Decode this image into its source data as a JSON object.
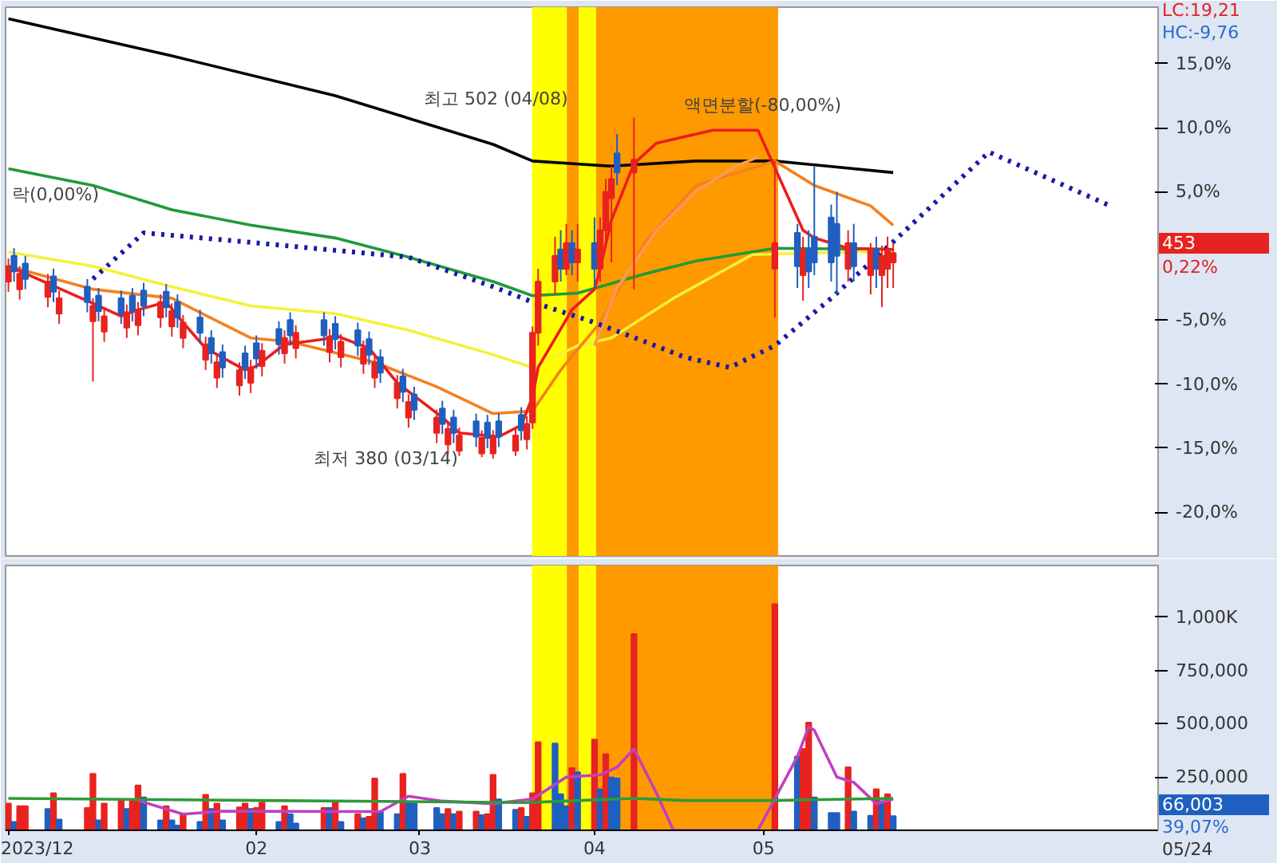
{
  "chart_data": [
    {
      "type": "candlestick",
      "x": [
        "2023-12-19",
        "2023-12-20",
        "2023-12-21",
        "2023-12-22",
        "2023-12-26",
        "2023-12-27",
        "2023-12-28",
        "2024-01-02",
        "2024-01-03",
        "2024-01-04",
        "2024-01-05",
        "2024-01-08",
        "2024-01-09",
        "2024-01-10",
        "2024-01-11",
        "2024-01-12",
        "2024-01-15",
        "2024-01-16",
        "2024-01-17",
        "2024-01-18",
        "2024-01-19",
        "2024-01-22",
        "2024-01-23",
        "2024-01-24",
        "2024-01-25",
        "2024-01-26",
        "2024-01-29",
        "2024-01-30",
        "2024-01-31",
        "2024-02-01",
        "2024-02-02",
        "2024-02-05",
        "2024-02-06",
        "2024-02-07",
        "2024-02-08",
        "2024-02-13",
        "2024-02-14",
        "2024-02-15",
        "2024-02-16",
        "2024-02-19",
        "2024-02-20",
        "2024-02-21",
        "2024-02-22",
        "2024-02-23",
        "2024-02-26",
        "2024-02-27",
        "2024-02-28",
        "2024-02-29",
        "2024-03-04",
        "2024-03-05",
        "2024-03-06",
        "2024-03-07",
        "2024-03-08",
        "2024-03-11",
        "2024-03-12",
        "2024-03-13",
        "2024-03-14",
        "2024-03-15",
        "2024-03-18",
        "2024-03-19",
        "2024-03-20",
        "2024-03-21",
        "2024-03-22",
        "2024-03-25",
        "2024-03-26",
        "2024-03-27",
        "2024-03-28",
        "2024-03-29",
        "2024-04-01",
        "2024-04-02",
        "2024-04-03",
        "2024-04-04",
        "2024-04-05",
        "2024-04-08",
        "2024-05-03",
        "2024-05-07",
        "2024-05-08",
        "2024-05-09",
        "2024-05-10",
        "2024-05-13",
        "2024-05-14",
        "2024-05-16",
        "2024-05-17",
        "2024-05-20",
        "2024-05-21",
        "2024-05-22",
        "2024-05-23",
        "2024-05-24"
      ],
      "ohlc": [
        [
          -2.0,
          -0.2,
          -2.8,
          -0.8
        ],
        [
          0.0,
          0.6,
          -2.0,
          -1.2
        ],
        [
          -2.6,
          -0.8,
          -3.4,
          -1.4
        ],
        [
          -0.6,
          0.0,
          -2.6,
          -1.8
        ],
        [
          -3.2,
          -1.4,
          -4.0,
          -2.0
        ],
        [
          -1.6,
          -1.0,
          -3.6,
          -2.8
        ],
        [
          -4.5,
          -2.7,
          -5.3,
          -3.3
        ],
        [
          -2.4,
          -1.8,
          -4.4,
          -3.6
        ],
        [
          -5.1,
          -3.3,
          -9.8,
          -3.9
        ],
        [
          -3.1,
          -2.5,
          -5.1,
          -4.3
        ],
        [
          -5.9,
          -4.1,
          -6.7,
          -4.7
        ],
        [
          -3.3,
          -2.7,
          -5.3,
          -4.5
        ],
        [
          -5.6,
          -3.8,
          -6.4,
          -4.4
        ],
        [
          -3.1,
          -2.5,
          -5.1,
          -4.3
        ],
        [
          -5.4,
          -3.6,
          -6.2,
          -4.2
        ],
        [
          -2.7,
          -2.1,
          -4.7,
          -3.9
        ],
        [
          -4.8,
          -3.0,
          -5.6,
          -3.6
        ],
        [
          -2.8,
          -2.2,
          -4.8,
          -4.0
        ],
        [
          -5.5,
          -3.7,
          -6.3,
          -4.3
        ],
        [
          -3.6,
          -3.0,
          -5.6,
          -4.8
        ],
        [
          -6.4,
          -4.6,
          -7.2,
          -5.2
        ],
        [
          -4.8,
          -4.2,
          -6.8,
          -6.0
        ],
        [
          -8.1,
          -6.3,
          -8.9,
          -6.9
        ],
        [
          -6.4,
          -5.8,
          -8.4,
          -7.6
        ],
        [
          -9.5,
          -7.7,
          -10.3,
          -8.3
        ],
        [
          -7.5,
          -6.9,
          -9.5,
          -8.7
        ],
        [
          -10.1,
          -8.3,
          -10.9,
          -8.9
        ],
        [
          -7.6,
          -7.0,
          -9.6,
          -8.8
        ],
        [
          -9.9,
          -8.1,
          -10.7,
          -8.7
        ],
        [
          -6.8,
          -6.2,
          -8.8,
          -8.0
        ],
        [
          -8.6,
          -6.8,
          -9.4,
          -7.4
        ],
        [
          -5.7,
          -5.1,
          -7.7,
          -6.9
        ],
        [
          -7.6,
          -5.8,
          -8.4,
          -6.4
        ],
        [
          -5.0,
          -4.4,
          -7.0,
          -6.2
        ],
        [
          -7.2,
          -5.4,
          -8.0,
          -6.0
        ],
        [
          -5.0,
          -4.4,
          -7.0,
          -6.2
        ],
        [
          -7.5,
          -5.7,
          -8.3,
          -6.3
        ],
        [
          -5.3,
          -4.7,
          -7.3,
          -6.5
        ],
        [
          -7.9,
          -6.1,
          -8.7,
          -6.7
        ],
        [
          -5.8,
          -5.2,
          -7.8,
          -7.0
        ],
        [
          -8.4,
          -6.6,
          -9.2,
          -7.2
        ],
        [
          -6.5,
          -5.9,
          -8.5,
          -7.7
        ],
        [
          -9.5,
          -7.7,
          -10.3,
          -8.3
        ],
        [
          -7.9,
          -7.3,
          -9.9,
          -9.1
        ],
        [
          -11.1,
          -9.3,
          -11.9,
          -9.9
        ],
        [
          -9.4,
          -8.8,
          -11.4,
          -10.6
        ],
        [
          -12.6,
          -10.8,
          -13.4,
          -11.4
        ],
        [
          -10.8,
          -10.2,
          -12.8,
          -12.0
        ],
        [
          -13.8,
          -12.0,
          -14.6,
          -12.6
        ],
        [
          -11.9,
          -11.3,
          -13.9,
          -13.1
        ],
        [
          -14.7,
          -12.9,
          -15.5,
          -13.5
        ],
        [
          -12.6,
          -12.0,
          -14.6,
          -13.8
        ],
        [
          -15.2,
          -13.4,
          -15.6,
          -14.0
        ],
        [
          -12.9,
          -12.3,
          -14.9,
          -14.1
        ],
        [
          -15.4,
          -13.6,
          -15.7,
          -14.2
        ],
        [
          -13.0,
          -12.4,
          -15.0,
          -14.2
        ],
        [
          -15.4,
          -13.6,
          -15.8,
          -14.2
        ],
        [
          -12.9,
          -12.3,
          -14.9,
          -14.1
        ],
        [
          -15.2,
          -13.4,
          -15.6,
          -14.0
        ],
        [
          -12.4,
          -11.8,
          -14.4,
          -13.6
        ],
        [
          -14.3,
          -12.5,
          -15.1,
          -13.1
        ],
        [
          -13.0,
          -5.5,
          -13.5,
          -6.0
        ],
        [
          -6.0,
          -1.0,
          -7.0,
          -2.0
        ],
        [
          -2.0,
          1.5,
          -3.0,
          0.0
        ],
        [
          0.5,
          2.0,
          -2.0,
          -1.0
        ],
        [
          -1.0,
          2.5,
          -1.5,
          1.0
        ],
        [
          1.0,
          2.0,
          -1.5,
          -0.5
        ],
        [
          -0.5,
          2.5,
          -2.0,
          0.5
        ],
        [
          1.0,
          3.0,
          -2.5,
          -1.0
        ],
        [
          -1.0,
          3.0,
          -2.0,
          2.0
        ],
        [
          2.0,
          6.0,
          1.0,
          5.0
        ],
        [
          4.5,
          7.0,
          -0.5,
          6.0
        ],
        [
          8.0,
          9.5,
          5.5,
          6.5
        ],
        [
          6.5,
          10.8,
          -2.6,
          7.5
        ],
        [
          -1.0,
          7.4,
          -4.8,
          1.0
        ],
        [
          1.8,
          2.5,
          -2.5,
          -0.8
        ],
        [
          -1.5,
          1.5,
          -3.5,
          0.5
        ],
        [
          0.5,
          2.0,
          -2.5,
          -1.2
        ],
        [
          1.5,
          7.0,
          -1.5,
          -0.5
        ],
        [
          3.0,
          4.0,
          -2.0,
          -0.5
        ],
        [
          2.5,
          5.0,
          -3.0,
          0.0
        ],
        [
          -1.0,
          2.0,
          -2.0,
          1.0
        ],
        [
          1.0,
          2.5,
          -2.0,
          -0.8
        ],
        [
          -1.5,
          1.0,
          -3.0,
          0.5
        ],
        [
          0.5,
          1.5,
          -2.5,
          -1.0
        ],
        [
          -1.5,
          0.8,
          -4.0,
          0.0
        ],
        [
          -1.0,
          1.5,
          -2.5,
          0.5
        ],
        [
          -0.5,
          1.0,
          -2.5,
          0.22
        ]
      ],
      "colors": [
        "#e8231f",
        "#1f5fbf",
        "#e8231f",
        "#1f5fbf",
        "#e8231f",
        "#1f5fbf",
        "#e8231f",
        "#1f5fbf",
        "#e8231f",
        "#1f5fbf",
        "#e8231f",
        "#1f5fbf",
        "#e8231f",
        "#1f5fbf",
        "#e8231f",
        "#1f5fbf",
        "#e8231f",
        "#1f5fbf",
        "#e8231f",
        "#1f5fbf",
        "#e8231f",
        "#1f5fbf",
        "#e8231f",
        "#1f5fbf",
        "#e8231f",
        "#1f5fbf",
        "#e8231f",
        "#1f5fbf",
        "#e8231f",
        "#1f5fbf",
        "#e8231f",
        "#1f5fbf",
        "#e8231f",
        "#1f5fbf",
        "#e8231f",
        "#1f5fbf",
        "#e8231f",
        "#1f5fbf",
        "#e8231f",
        "#1f5fbf",
        "#e8231f",
        "#1f5fbf",
        "#e8231f",
        "#1f5fbf",
        "#e8231f",
        "#1f5fbf",
        "#e8231f",
        "#1f5fbf",
        "#e8231f",
        "#1f5fbf",
        "#e8231f",
        "#1f5fbf",
        "#e8231f",
        "#1f5fbf",
        "#e8231f",
        "#1f5fbf",
        "#e8231f",
        "#1f5fbf",
        "#e8231f",
        "#1f5fbf",
        "#e8231f",
        "#e8231f",
        "#e8231f",
        "#e8231f",
        "#1f5fbf",
        "#e8231f",
        "#1f5fbf",
        "#e8231f",
        "#1f5fbf",
        "#e8231f",
        "#e8231f",
        "#e8231f",
        "#1f5fbf",
        "#e8231f",
        "#e8231f",
        "#1f5fbf",
        "#e8231f",
        "#1f5fbf",
        "#1f5fbf",
        "#1f5fbf",
        "#1f5fbf",
        "#e8231f",
        "#1f5fbf",
        "#e8231f",
        "#1f5fbf",
        "#e8231f",
        "#e8231f",
        "#e8231f"
      ],
      "series": [
        {
          "type": "line",
          "color": "#000000",
          "x": [
            "2023-12-19",
            "2024-01-17",
            "2024-02-15",
            "2024-03-14",
            "2024-03-21",
            "2024-04-04",
            "2024-04-19",
            "2024-05-03",
            "2024-05-24"
          ],
          "values": [
            18.5,
            15.6,
            12.5,
            8.7,
            7.4,
            7.0,
            7.4,
            7.4,
            6.5
          ]
        },
        {
          "type": "line",
          "color": "#1f9a3a",
          "x": [
            "2023-12-19",
            "2024-01-03",
            "2024-01-17",
            "2024-01-31",
            "2024-02-15",
            "2024-02-28",
            "2024-03-14",
            "2024-03-21",
            "2024-03-29",
            "2024-04-10",
            "2024-04-19",
            "2024-05-03",
            "2024-05-24"
          ],
          "values": [
            6.8,
            5.5,
            3.6,
            2.4,
            1.4,
            -0.1,
            -2.0,
            -3.1,
            -2.9,
            -1.4,
            -0.4,
            0.6,
            0.5
          ]
        },
        {
          "type": "line",
          "color": "#f7f03a",
          "x": [
            "2023-12-19",
            "2024-01-03",
            "2024-01-17",
            "2024-01-31",
            "2024-02-15",
            "2024-02-28",
            "2024-03-14",
            "2024-03-21",
            "2024-03-29",
            "2024-04-04",
            "2024-04-15",
            "2024-04-29",
            "2024-05-24"
          ],
          "values": [
            0.3,
            -0.8,
            -2.4,
            -3.9,
            -4.5,
            -5.8,
            -7.7,
            -8.7,
            -7.0,
            -6.4,
            -3.3,
            0.1,
            0.4
          ]
        },
        {
          "type": "line",
          "color": "#f5801e",
          "x": [
            "2023-12-19",
            "2024-01-03",
            "2024-01-17",
            "2024-01-31",
            "2024-02-07",
            "2024-02-22",
            "2024-03-04",
            "2024-03-14",
            "2024-03-21",
            "2024-03-26",
            "2024-04-02",
            "2024-04-10",
            "2024-04-19",
            "2024-05-03",
            "2024-05-10",
            "2024-05-20",
            "2024-05-24"
          ],
          "values": [
            -0.8,
            -2.6,
            -3.3,
            -6.4,
            -6.7,
            -8.3,
            -10.2,
            -12.3,
            -12.1,
            -8.9,
            -5.2,
            1.1,
            5.5,
            7.4,
            5.5,
            3.9,
            2.4
          ]
        },
        {
          "type": "line",
          "color": "#f79a5a",
          "x": [
            "2024-04-01",
            "2024-04-05",
            "2024-04-12",
            "2024-04-19",
            "2024-04-26",
            "2024-04-30"
          ],
          "values": [
            -7.0,
            -2.5,
            2.0,
            5.0,
            7.0,
            7.7
          ]
        },
        {
          "type": "line",
          "color": "#ee1c1c",
          "x": [
            "2023-12-19",
            "2024-01-02",
            "2024-01-08",
            "2024-01-11",
            "2024-01-16",
            "2024-01-19",
            "2024-01-23",
            "2024-01-30",
            "2024-02-01",
            "2024-02-06",
            "2024-02-13",
            "2024-02-15",
            "2024-02-21",
            "2024-02-26",
            "2024-03-05",
            "2024-03-08",
            "2024-03-15",
            "2024-03-19",
            "2024-03-21",
            "2024-03-22",
            "2024-03-28",
            "2024-04-01",
            "2024-04-02",
            "2024-04-04",
            "2024-04-08",
            "2024-04-12",
            "2024-04-22",
            "2024-04-30",
            "2024-05-08",
            "2024-05-10",
            "2024-05-16",
            "2024-05-24"
          ],
          "values": [
            -0.8,
            -3.5,
            -4.7,
            -4.2,
            -3.6,
            -5.2,
            -7.2,
            -8.9,
            -8.6,
            -6.9,
            -6.5,
            -6.2,
            -7.2,
            -9.9,
            -12.6,
            -13.8,
            -14.1,
            -13.2,
            -11.0,
            -8.7,
            -4.2,
            -2.6,
            -1.0,
            2.8,
            7.2,
            8.8,
            9.8,
            9.8,
            2.0,
            1.4,
            0.6,
            0.5
          ]
        },
        {
          "type": "line",
          "color": "#1a1aa8",
          "line_style": "dotted",
          "x": [
            "2024-01-03",
            "2024-01-12",
            "2024-01-30",
            "2024-02-28",
            "2024-03-14",
            "2024-03-21",
            "2024-04-01",
            "2024-04-10",
            "2024-04-17",
            "2024-04-25",
            "2024-05-03",
            "2024-05-13",
            "2024-05-24",
            "2024-06-10",
            "2024-07-01"
          ],
          "values": [
            -1.8,
            1.8,
            1.1,
            -0.1,
            -2.4,
            -3.6,
            -5.2,
            -6.7,
            -7.9,
            -8.7,
            -7.0,
            -3.3,
            1.1,
            8.1,
            4.0
          ]
        }
      ],
      "xlim": [
        "2023-12-18T12:00",
        "2024-07-10"
      ],
      "ylim": [
        -23.4,
        19.4
      ],
      "yticks": [
        {
          "value": 15,
          "label": "15,0%"
        },
        {
          "value": 10,
          "label": "10,0%"
        },
        {
          "value": 5,
          "label": "5,0%"
        },
        {
          "value": -5,
          "label": "-5,0%"
        },
        {
          "value": -10,
          "label": "-10,0%"
        },
        {
          "value": -15,
          "label": "-15,0%"
        },
        {
          "value": -20,
          "label": "-20,0%"
        }
      ],
      "tick_labels": "y",
      "bands": [
        {
          "axis": "x",
          "from": "2024-03-20T22:00",
          "to": "2024-03-27T02:00",
          "color": "#ffff00"
        },
        {
          "axis": "x",
          "from": "2024-03-27T02:00",
          "to": "2024-03-29T05:00",
          "color": "#ff9900"
        },
        {
          "axis": "x",
          "from": "2024-03-29T05:00",
          "to": "2024-04-01T07:00",
          "color": "#ffff00"
        },
        {
          "axis": "x",
          "from": "2024-04-01T07:00",
          "to": "2024-05-03T14:00",
          "color": "#ff9900"
        }
      ],
      "annotations": [
        "LC:19,21",
        "HC:-9,76",
        "453",
        "0,22%",
        "락(0,00%)",
        "최고 502 (04/08)",
        "액면분할(-80,00%)",
        {
          "text": "최저 380 (03/14)",
          "x": "2024-03-14",
          "y": -15.8
        }
      ]
    },
    {
      "type": "bar",
      "x": [
        "2023-12-19",
        "2023-12-20",
        "2023-12-21",
        "2023-12-22",
        "2023-12-26",
        "2023-12-27",
        "2023-12-28",
        "2024-01-02",
        "2024-01-03",
        "2024-01-04",
        "2024-01-05",
        "2024-01-08",
        "2024-01-09",
        "2024-01-10",
        "2024-01-11",
        "2024-01-12",
        "2024-01-15",
        "2024-01-16",
        "2024-01-17",
        "2024-01-18",
        "2024-01-19",
        "2024-01-22",
        "2024-01-23",
        "2024-01-24",
        "2024-01-25",
        "2024-01-26",
        "2024-01-29",
        "2024-01-30",
        "2024-01-31",
        "2024-02-01",
        "2024-02-02",
        "2024-02-05",
        "2024-02-06",
        "2024-02-07",
        "2024-02-08",
        "2024-02-13",
        "2024-02-14",
        "2024-02-15",
        "2024-02-16",
        "2024-02-19",
        "2024-02-20",
        "2024-02-21",
        "2024-02-22",
        "2024-02-23",
        "2024-02-26",
        "2024-02-27",
        "2024-02-28",
        "2024-02-29",
        "2024-03-04",
        "2024-03-05",
        "2024-03-06",
        "2024-03-07",
        "2024-03-08",
        "2024-03-11",
        "2024-03-12",
        "2024-03-13",
        "2024-03-14",
        "2024-03-15",
        "2024-03-18",
        "2024-03-19",
        "2024-03-20",
        "2024-03-21",
        "2024-03-22",
        "2024-03-25",
        "2024-03-26",
        "2024-03-27",
        "2024-03-28",
        "2024-03-29",
        "2024-04-01",
        "2024-04-02",
        "2024-04-03",
        "2024-04-04",
        "2024-04-05",
        "2024-04-08",
        "2024-05-03",
        "2024-05-07",
        "2024-05-08",
        "2024-05-09",
        "2024-05-10",
        "2024-05-13",
        "2024-05-14",
        "2024-05-16",
        "2024-05-17",
        "2024-05-20",
        "2024-05-21",
        "2024-05-22",
        "2024-05-23",
        "2024-05-24"
      ],
      "values": [
        125000,
        39000,
        113000,
        113000,
        100000,
        174000,
        51000,
        105000,
        265000,
        47000,
        125000,
        145000,
        100000,
        137000,
        211000,
        154000,
        47000,
        113000,
        47000,
        22000,
        76000,
        39000,
        167000,
        100000,
        125000,
        47000,
        108000,
        125000,
        100000,
        105000,
        130000,
        39000,
        113000,
        76000,
        32000,
        105000,
        105000,
        130000,
        39000,
        76000,
        56000,
        64000,
        243000,
        88000,
        76000,
        265000,
        130000,
        125000,
        105000,
        76000,
        100000,
        76000,
        88000,
        88000,
        71000,
        76000,
        260000,
        145000,
        96000,
        105000,
        64000,
        174000,
        414000,
        407000,
        169000,
        113000,
        292000,
        272000,
        426000,
        193000,
        358000,
        248000,
        243000,
        921000,
        1061000,
        346000,
        382000,
        505000,
        154000,
        81000,
        81000,
        296000,
        88000,
        68000,
        193000,
        137000,
        169000,
        66003
      ],
      "colors": [
        "#e8231f",
        "#1f5fbf",
        "#e8231f",
        "#e8231f",
        "#1f5fbf",
        "#e8231f",
        "#1f5fbf",
        "#e8231f",
        "#e8231f",
        "#1f5fbf",
        "#e8231f",
        "#e8231f",
        "#1f5fbf",
        "#e8231f",
        "#e8231f",
        "#1f5fbf",
        "#1f5fbf",
        "#e8231f",
        "#1f5fbf",
        "#1f5fbf",
        "#e8231f",
        "#1f5fbf",
        "#e8231f",
        "#1f5fbf",
        "#e8231f",
        "#1f5fbf",
        "#e8231f",
        "#e8231f",
        "#1f5fbf",
        "#e8231f",
        "#e8231f",
        "#1f5fbf",
        "#e8231f",
        "#1f5fbf",
        "#1f5fbf",
        "#e8231f",
        "#1f5fbf",
        "#e8231f",
        "#1f5fbf",
        "#e8231f",
        "#1f5fbf",
        "#e8231f",
        "#e8231f",
        "#1f5fbf",
        "#1f5fbf",
        "#e8231f",
        "#1f5fbf",
        "#1f5fbf",
        "#1f5fbf",
        "#1f5fbf",
        "#e8231f",
        "#1f5fbf",
        "#e8231f",
        "#e8231f",
        "#1f5fbf",
        "#e8231f",
        "#e8231f",
        "#1f5fbf",
        "#1f5fbf",
        "#e8231f",
        "#1f5fbf",
        "#e8231f",
        "#e8231f",
        "#1f5fbf",
        "#1f5fbf",
        "#1f5fbf",
        "#e8231f",
        "#1f5fbf",
        "#e8231f",
        "#1f5fbf",
        "#e8231f",
        "#1f5fbf",
        "#1f5fbf",
        "#e8231f",
        "#e8231f",
        "#1f5fbf",
        "#e8231f",
        "#e8231f",
        "#1f5fbf",
        "#1f5fbf",
        "#1f5fbf",
        "#e8231f",
        "#1f5fbf",
        "#1f5fbf",
        "#e8231f",
        "#1f5fbf",
        "#e8231f",
        "#1f5fbf"
      ],
      "series": [
        {
          "type": "line",
          "color": "#c040c0",
          "x": [
            "2024-01-11",
            "2024-01-19",
            "2024-01-26",
            "2024-02-19",
            "2024-02-23",
            "2024-02-28",
            "2024-03-05",
            "2024-03-14",
            "2024-03-21",
            "2024-03-27",
            "2024-04-02",
            "2024-04-05",
            "2024-04-08",
            "2024-04-12",
            "2024-04-15",
            "2024-04-30",
            "2024-05-07",
            "2024-05-09",
            "2024-05-10",
            "2024-05-14",
            "2024-05-17",
            "2024-05-21",
            "2024-05-24"
          ],
          "values": [
            140000,
            76000,
            90000,
            88000,
            88000,
            160000,
            137000,
            125000,
            147000,
            250000,
            260000,
            296000,
            382000,
            174000,
            0,
            0,
            346000,
            485000,
            470000,
            250000,
            225000,
            125000,
            147000
          ]
        },
        {
          "type": "line",
          "color": "#2f9a3a",
          "x": [
            "2023-12-19",
            "2024-02-02",
            "2024-03-20",
            "2024-04-08",
            "2024-04-17",
            "2024-05-03",
            "2024-05-24"
          ],
          "values": [
            150000,
            140000,
            130000,
            150000,
            140000,
            140000,
            150000
          ]
        }
      ],
      "xlim": [
        "2023-12-18T12:00",
        "2024-07-10"
      ],
      "ylim": [
        0,
        1243000
      ],
      "xticks": [
        {
          "value": "2023-12-19",
          "label": "2023/12"
        },
        {
          "value": "2024-02-01",
          "label": "02"
        },
        {
          "value": "2024-03-01",
          "label": "03"
        },
        {
          "value": "2024-04-01",
          "label": "04"
        },
        {
          "value": "2024-05-01",
          "label": "05"
        }
      ],
      "yticks": [
        {
          "value": 250000,
          "label": "250,000"
        },
        {
          "value": 500000,
          "label": "500,000"
        },
        {
          "value": 750000,
          "label": "750,000"
        },
        {
          "value": 1000000,
          "label": "1,000K"
        }
      ],
      "bands": [
        {
          "axis": "x",
          "from": "2024-03-20T22:00",
          "to": "2024-03-27T02:00",
          "color": "#ffff00"
        },
        {
          "axis": "x",
          "from": "2024-03-27T02:00",
          "to": "2024-03-29T05:00",
          "color": "#ff9900"
        },
        {
          "axis": "x",
          "from": "2024-03-29T05:00",
          "to": "2024-04-01T07:00",
          "color": "#ffff00"
        },
        {
          "axis": "x",
          "from": "2024-04-01T07:00",
          "to": "2024-05-03T14:00",
          "color": "#ff9900"
        }
      ],
      "annotations": [
        "66,003",
        "39,07%",
        "05/24"
      ]
    }
  ]
}
